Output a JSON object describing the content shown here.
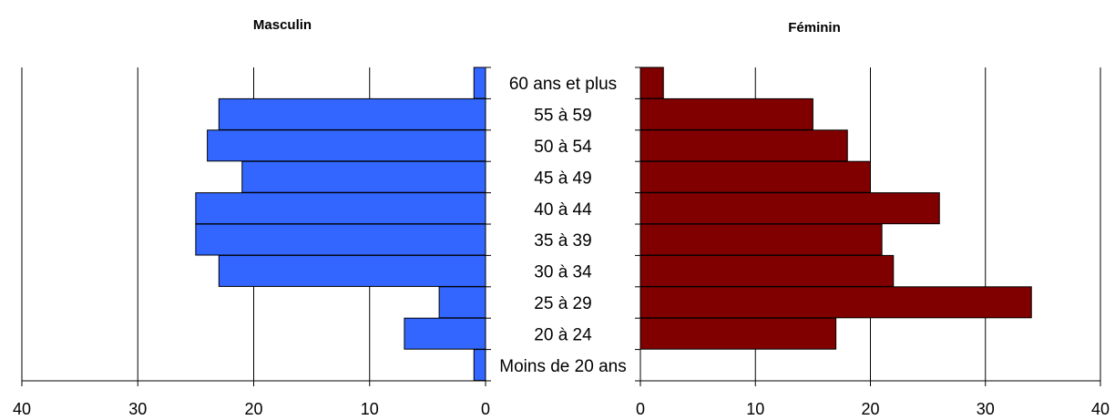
{
  "chart_data": [
    {
      "type": "bar",
      "orientation": "horizontal",
      "direction": "right-to-left",
      "title": "Masculin",
      "categories": [
        "60 ans et plus",
        "55 à 59",
        "50 à 54",
        "45 à 49",
        "40 à 44",
        "35 à 39",
        "30 à 34",
        "25 à 29",
        "20 à 24",
        "Moins de 20 ans"
      ],
      "values": [
        1,
        23,
        24,
        21,
        25,
        25,
        23,
        4,
        7,
        1
      ],
      "xlim": [
        0,
        40
      ],
      "xticks": [
        "0",
        "10",
        "20",
        "30",
        "40"
      ],
      "grid": true,
      "color": "#3366FF"
    },
    {
      "type": "bar",
      "orientation": "horizontal",
      "direction": "left-to-right",
      "title": "Féminin",
      "categories": [
        "60 ans et plus",
        "55 à 59",
        "50 à 54",
        "45 à 49",
        "40 à 44",
        "35 à 39",
        "30 à 34",
        "25 à 29",
        "20 à 24",
        "Moins de 20 ans"
      ],
      "values": [
        2,
        15,
        18,
        20,
        26,
        21,
        22,
        34,
        17,
        0
      ],
      "xlim": [
        0,
        40
      ],
      "xticks": [
        "0",
        "10",
        "20",
        "30",
        "40"
      ],
      "grid": true,
      "color": "#800000"
    }
  ]
}
